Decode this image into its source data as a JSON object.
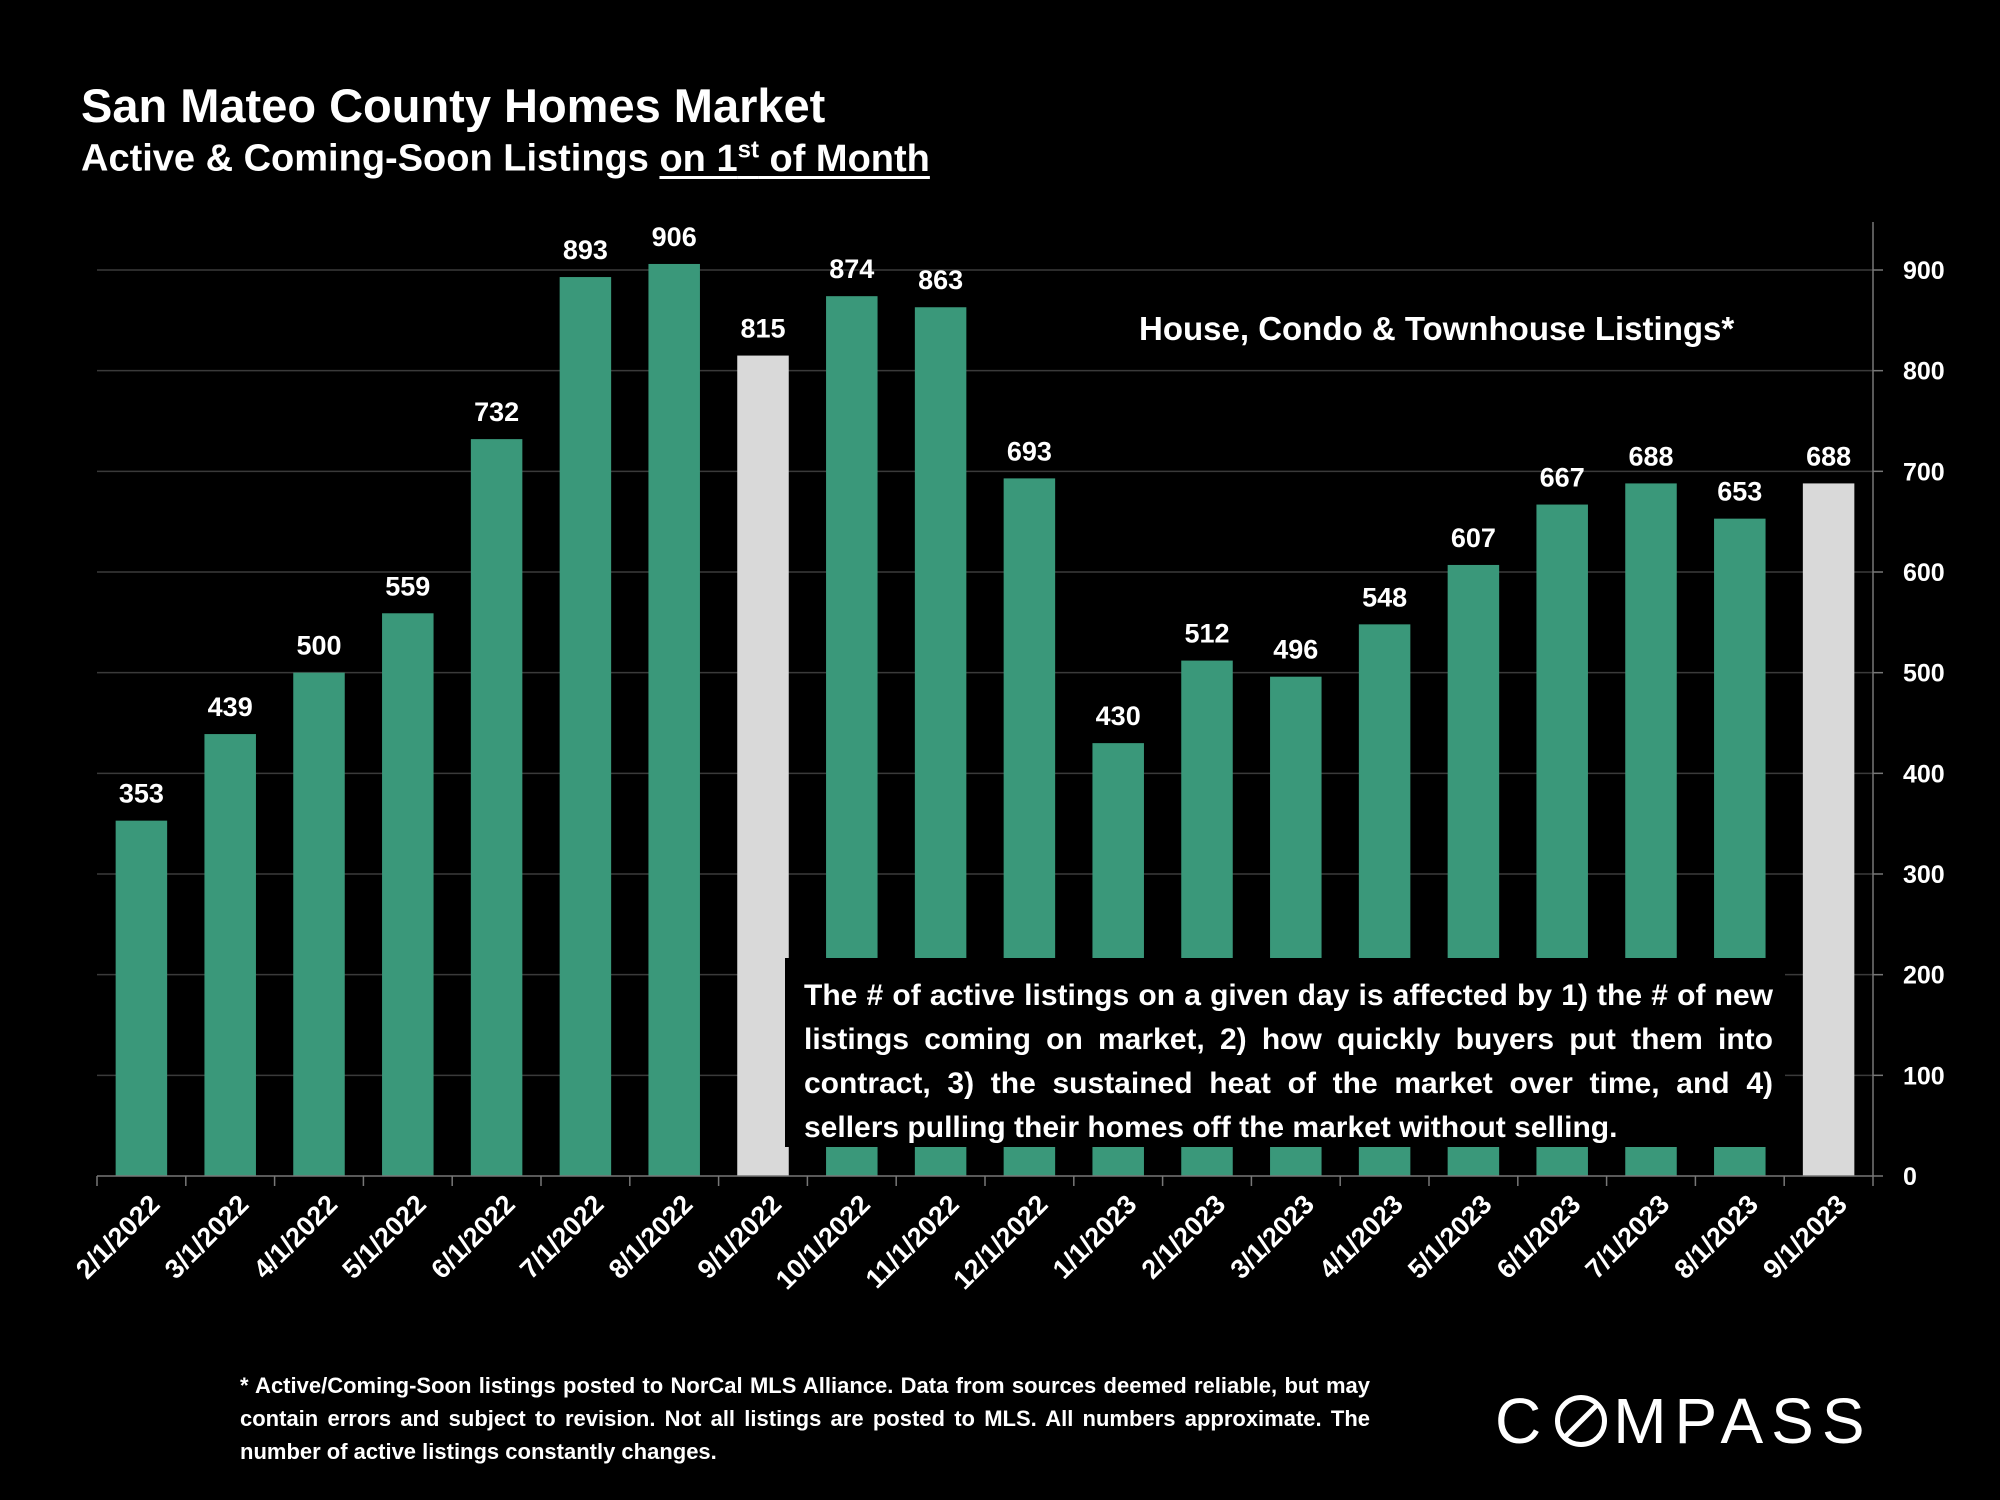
{
  "header": {
    "title": "San Mateo County Homes Market",
    "subtitle_prefix": "Active & Coming-Soon Listings ",
    "subtitle_underlined_start": "on 1",
    "subtitle_sup": "st",
    "subtitle_underlined_end": " of Month"
  },
  "inset_label": "House, Condo & Townhouse Listings*",
  "note": "The # of active listings on a given day is affected by 1) the # of new listings coming on market, 2) how quickly buyers put them into contract, 3) the sustained heat of the market over time, and 4) sellers pulling their homes off the market without selling.",
  "footnote": "* Active/Coming-Soon listings posted to NorCal MLS Alliance.  Data from sources deemed reliable, but may contain errors and subject to revision.  Not all listings are posted to MLS. All numbers approximate. The number of active listings constantly changes.",
  "brand": {
    "left": "C",
    "right": "MPASS",
    "icon": "compass-logo-icon"
  },
  "colors": {
    "bar": "#3a987a",
    "highlight": "#d9d9d9",
    "background": "#000000",
    "gridline": "#3a3a3a"
  },
  "chart_data": {
    "type": "bar",
    "title": "San Mateo County Homes Market",
    "categories": [
      "2/1/2022",
      "3/1/2022",
      "4/1/2022",
      "5/1/2022",
      "6/1/2022",
      "7/1/2022",
      "8/1/2022",
      "9/1/2022",
      "10/1/2022",
      "11/1/2022",
      "12/1/2022",
      "1/1/2023",
      "2/1/2023",
      "3/1/2023",
      "4/1/2023",
      "5/1/2023",
      "6/1/2023",
      "7/1/2023",
      "8/1/2023",
      "9/1/2023"
    ],
    "values": [
      353,
      439,
      500,
      559,
      732,
      893,
      906,
      815,
      874,
      863,
      693,
      430,
      512,
      496,
      548,
      607,
      667,
      688,
      653,
      688
    ],
    "highlight_categories": [
      "9/1/2022",
      "9/1/2023"
    ],
    "data_labels": true,
    "ylim": [
      0,
      900
    ],
    "yticks": [
      0,
      100,
      200,
      300,
      400,
      500,
      600,
      700,
      800,
      900
    ],
    "y_axis_side": "right",
    "grid": true,
    "xlabel": "",
    "ylabel": ""
  }
}
